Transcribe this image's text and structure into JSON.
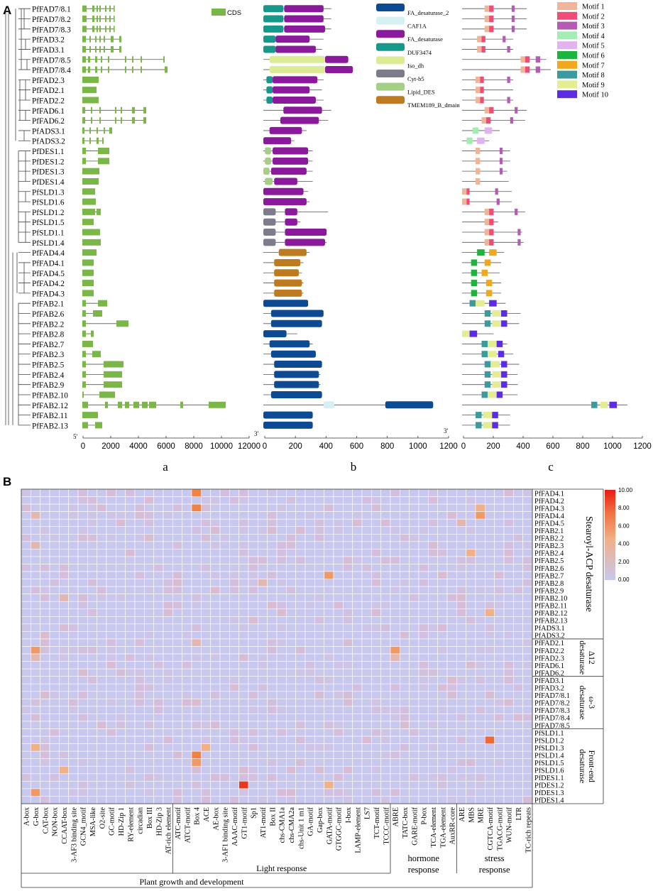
{
  "panel_labels": {
    "A": "A",
    "B": "B"
  },
  "sub_labels": {
    "a": "a",
    "b": "b",
    "c": "c"
  },
  "genes": [
    "PfFAD7/8.1",
    "PfFAD7/8.2",
    "PfFAD7/8.3",
    "PfFAD3.2",
    "PfFAD3.1",
    "PfFAD7/8.5",
    "PfFAD7/8.4",
    "PfFAD2.3",
    "PfFAD2.1",
    "PfFAD2.2",
    "PfFAD6.1",
    "PfFAD6.2",
    "PfADS3.1",
    "PfADS3.2",
    "PfDES1.1",
    "PfDES1.2",
    "PfDES1.3",
    "PfDES1.4",
    "PfSLD1.3",
    "PfSLD1.6",
    "PfSLD1.2",
    "PfSLD1.5",
    "PfSLD1.1",
    "PfSLD1.4",
    "PfFAD4.4",
    "PfFAD4.1",
    "PfFAD4.5",
    "PfFAD4.2",
    "PfFAD4.3",
    "PfFAB2.1",
    "PfFAB2.6",
    "PfFAB2.2",
    "PfFAB2.8",
    "PfFAB2.7",
    "PfFAB2.3",
    "PfFAB2.5",
    "PfFAB2.4",
    "PfFAB2.9",
    "PfFAB2.10",
    "PfFAB2.12",
    "PfFAB2.11",
    "PfFAB2.13"
  ],
  "colors": {
    "cds": "#7ab648",
    "domains": {
      "FA_desaturase_2": "#0d4a94",
      "CAF1A": "#d6f0f4",
      "FA_desaturase": "#8a1a9b",
      "DUF3474": "#16998a",
      "Iso_dh": "#dcec94",
      "Cyt-b5": "#7c7c8c",
      "Lipid_DES": "#a4cf84",
      "TMEM189_B_dmain": "#bd7a1e"
    },
    "motifs": [
      "#f0b497",
      "#f04c78",
      "#b45cb4",
      "#a4ecb4",
      "#e0b4ec",
      "#1cb43c",
      "#f0a81c",
      "#3c9a9c",
      "#e4ec94",
      "#5c2ce4"
    ]
  },
  "cds_legend": "CDS",
  "domain_legend": [
    "FA_desaturase_2",
    "CAF1A",
    "FA_desaturase",
    "DUF3474",
    "Iso_dh",
    "Cyt-b5",
    "Lipid_DES",
    "TMEM189_B_dmain"
  ],
  "motif_legend": [
    "Motif 1",
    "Motif 2",
    "Motif 3",
    "Motif 4",
    "Motif 5",
    "Motif 6",
    "Motif 7",
    "Motif 8",
    "Motif 9",
    "Motif 10"
  ],
  "axis_a": {
    "ticks": [
      "0",
      "2000",
      "4000",
      "6000",
      "8000",
      "10000",
      "12000"
    ],
    "five": "5'",
    "three": "3'"
  },
  "axis_b": {
    "ticks": [
      "0",
      "200",
      "400",
      "600",
      "800",
      "1000",
      "1200"
    ],
    "three": "3'"
  },
  "axis_c": {
    "ticks": [
      "0",
      "200",
      "400",
      "600",
      "800",
      "1000",
      "1200"
    ]
  },
  "chart_data": {
    "type": "heatmap",
    "colorbar": {
      "min": 0,
      "max": 10,
      "ticks": [
        "10.00",
        "8.00",
        "6.00",
        "4.00",
        "2.00",
        "0.00"
      ]
    },
    "rows": [
      "PfFAD4.1",
      "PfFAD4.2",
      "PfFAD4.3",
      "PfFAD4.4",
      "PfFAD4.5",
      "PfFAB2.1",
      "PfFAB2.2",
      "PfFAB2.3",
      "PfFAB2.4",
      "PfFAB2.5",
      "PfFAB2.6",
      "PfFAB2.7",
      "PfFAB2.8",
      "PfFAB2.9",
      "PfFAB2.10",
      "PfFAB2.11",
      "PfFAB2.12",
      "PfFAB2.13",
      "PfADS3.1",
      "PfADS3.2",
      "PfFAD2.1",
      "PfFAD2.2",
      "PfFAD2.3",
      "PfFAD6.1",
      "PfFAD6.2",
      "PfFAD3.1",
      "PfFAD3.2",
      "PfFAD7/8.1",
      "PfFAD7/8.2",
      "PfFAD7/8.3",
      "PfFAD7/8.4",
      "PfFAD7/8.5",
      "PfSLD1.1",
      "PfSLD1.2",
      "PfSLD1.3",
      "PfSLD1.4",
      "PfSLD1.5",
      "PfSLD1.6",
      "PfDES1.1",
      "PfDES1.2",
      "PfDES1.3",
      "PfDES1.4"
    ],
    "columns": [
      "A-box",
      "G-box",
      "CAT-box",
      "NON-box",
      "CCAAT-box",
      "3-AF3 binding site",
      "GCN4_motif",
      "MSA-like",
      "O2-site",
      "GC-motif",
      "HD-Zip 1",
      "RY-element",
      "circadian",
      "Box III",
      "HD-Zip 3",
      "AT-rich element",
      "ATC-motif",
      "ATCT-motif",
      "Box 4",
      "ACE",
      "AE-box",
      "3-AF1 binding site",
      "AAAC-motif",
      "GT1-motif",
      "Sp1",
      "AT1-motif",
      "Box II",
      "chs-CMA1a",
      "chs-CMA2a",
      "chs-Unit 1 m1",
      "GA-motif",
      "Gap-box",
      "GATA-motif",
      "GTGGC-motif",
      "I-box",
      "LAMP-element",
      "LS7",
      "TCT-motif",
      "TCCC-motif",
      "ABRE",
      "TATC-box",
      "GARE-motif",
      "P-box",
      "TCA-element",
      "TGA-element",
      "AuxRR-core",
      "ARE",
      "MBS",
      "MRE",
      "CGTCA-motif",
      "TGACG-motif",
      "WUN-motif",
      "LTR",
      "TC-rich repeats"
    ],
    "row_groups": [
      {
        "label": "Stearoyl-ACP desaturase",
        "size": 20
      },
      {
        "label": "Δ12 desaturase",
        "size": 5
      },
      {
        "label": "ω-3 desaturase",
        "size": 7
      },
      {
        "label": "Front-end desaturase",
        "size": 10
      }
    ],
    "column_groups": [
      {
        "label": "Plant growth and development",
        "size": 16
      },
      {
        "label": "Light response",
        "size": 23
      },
      {
        "label": "hormone response",
        "size": 7
      },
      {
        "label": "stress response",
        "size": 8
      }
    ],
    "highlights": [
      {
        "row": "PfFAD4.1",
        "col": "Box 4",
        "value": 6
      },
      {
        "row": "PfFAD4.3",
        "col": "Box 4",
        "value": 6
      },
      {
        "row": "PfFAD4.3",
        "col": "MRE",
        "value": 4
      },
      {
        "row": "PfFAD4.4",
        "col": "MRE",
        "value": 5
      },
      {
        "row": "PfFAD4.4",
        "col": "G-box",
        "value": 3
      },
      {
        "row": "PfFAD4.5",
        "col": "ARE",
        "value": 3
      },
      {
        "row": "PfFAB2.3",
        "col": "G-box",
        "value": 3
      },
      {
        "row": "PfFAB2.4",
        "col": "MBS",
        "value": 4
      },
      {
        "row": "PfFAB2.7",
        "col": "GATA-motif",
        "value": 5
      },
      {
        "row": "PfFAB2.8",
        "col": "AT1-motif",
        "value": 3
      },
      {
        "row": "PfFAB2.10",
        "col": "CCAAT-box",
        "value": 3
      },
      {
        "row": "PfFAB2.12",
        "col": "CGTCA-motif",
        "value": 4
      },
      {
        "row": "PfFAD2.1",
        "col": "Box 4",
        "value": 3
      },
      {
        "row": "PfFAD2.2",
        "col": "G-box",
        "value": 5
      },
      {
        "row": "PfFAD2.2",
        "col": "ABRE",
        "value": 5
      },
      {
        "row": "PfFAD2.3",
        "col": "G-box",
        "value": 3
      },
      {
        "row": "PfFAD2.3",
        "col": "ABRE",
        "value": 3
      },
      {
        "row": "PfSLD1.2",
        "col": "CGTCA-motif",
        "value": 7
      },
      {
        "row": "PfSLD1.3",
        "col": "ACE",
        "value": 4
      },
      {
        "row": "PfSLD1.3",
        "col": "G-box",
        "value": 4
      },
      {
        "row": "PfSLD1.4",
        "col": "Box 4",
        "value": 6
      },
      {
        "row": "PfSLD1.5",
        "col": "Box 4",
        "value": 5
      },
      {
        "row": "PfSLD1.6",
        "col": "CCAAT-box",
        "value": 4
      },
      {
        "row": "PfDES1.2",
        "col": "GT1-motif",
        "value": 9
      },
      {
        "row": "PfDES1.2",
        "col": "GATA-motif",
        "value": 4
      },
      {
        "row": "PfDES1.3",
        "col": "G-box",
        "value": 5
      }
    ]
  }
}
